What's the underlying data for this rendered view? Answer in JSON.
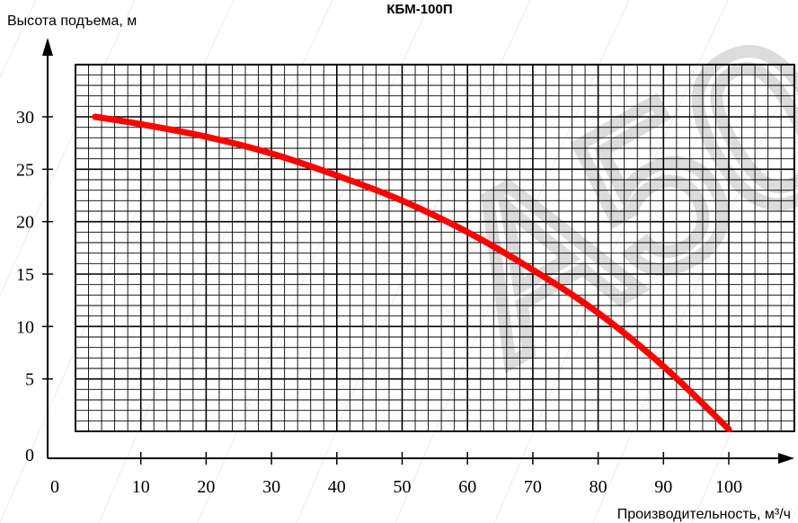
{
  "chart_data": {
    "type": "line",
    "title": "КБМ-100П",
    "ylabel": "Высота подъема, м",
    "xlabel": "Производительность, м³/ч",
    "xlim": [
      0,
      100
    ],
    "ylim": [
      0,
      30
    ],
    "x_ticks": [
      "0",
      "10",
      "20",
      "30",
      "40",
      "50",
      "60",
      "70",
      "80",
      "90",
      "100"
    ],
    "y_ticks": [
      "0",
      "5",
      "10",
      "15",
      "20",
      "25",
      "30"
    ],
    "grid": true,
    "series": [
      {
        "color": "#ff0000",
        "x": [
          3,
          10,
          20,
          30,
          40,
          50,
          60,
          70,
          80,
          90,
          100
        ],
        "y": [
          30,
          29.3,
          28.1,
          26.5,
          24.4,
          22,
          19,
          15.4,
          11.3,
          6.2,
          0.2
        ]
      }
    ],
    "watermark": {
      "text": "A50",
      "color": "#d9d9d9"
    }
  }
}
